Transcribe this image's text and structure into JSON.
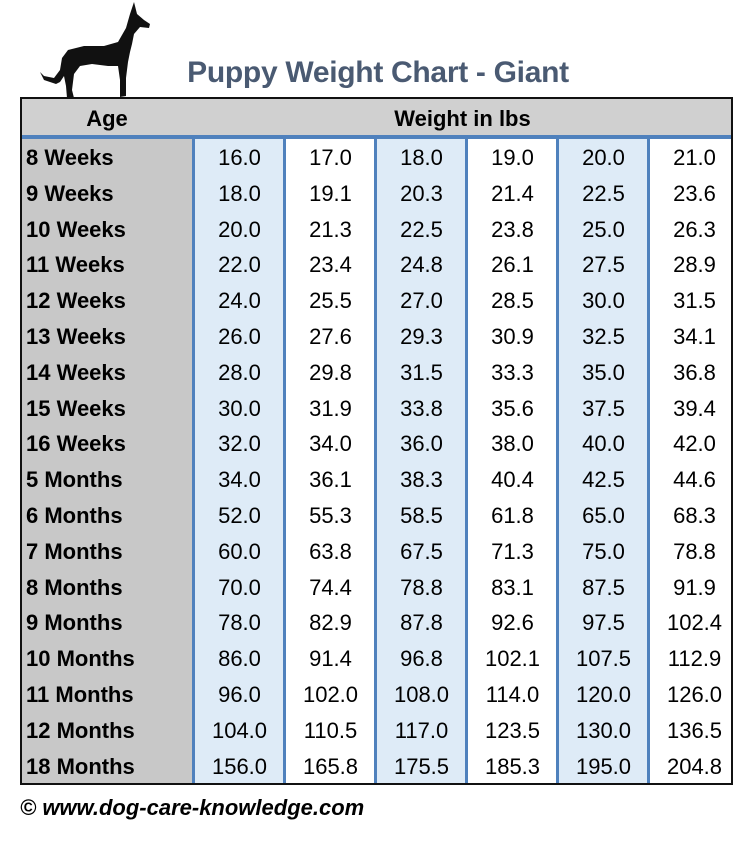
{
  "header": {
    "title": "Puppy Weight Chart - Giant",
    "icon": "dog-silhouette-icon"
  },
  "footer": {
    "copyright": "© www.dog-care-knowledge.com"
  },
  "colors": {
    "title": "#4a5a72",
    "border": "#4f81bd",
    "column_fill": "#deebf7",
    "age_fill": "#c8c8c8"
  },
  "chart_data": {
    "type": "table",
    "title": "Puppy Weight Chart - Giant",
    "columns": [
      "Age",
      "Weight in lbs"
    ],
    "rows": [
      {
        "age": "8 Weeks",
        "values": [
          "16.0",
          "17.0",
          "18.0",
          "19.0",
          "20.0",
          "21.0"
        ]
      },
      {
        "age": "9 Weeks",
        "values": [
          "18.0",
          "19.1",
          "20.3",
          "21.4",
          "22.5",
          "23.6"
        ]
      },
      {
        "age": "10 Weeks",
        "values": [
          "20.0",
          "21.3",
          "22.5",
          "23.8",
          "25.0",
          "26.3"
        ]
      },
      {
        "age": "11 Weeks",
        "values": [
          "22.0",
          "23.4",
          "24.8",
          "26.1",
          "27.5",
          "28.9"
        ]
      },
      {
        "age": "12 Weeks",
        "values": [
          "24.0",
          "25.5",
          "27.0",
          "28.5",
          "30.0",
          "31.5"
        ]
      },
      {
        "age": "13 Weeks",
        "values": [
          "26.0",
          "27.6",
          "29.3",
          "30.9",
          "32.5",
          "34.1"
        ]
      },
      {
        "age": "14 Weeks",
        "values": [
          "28.0",
          "29.8",
          "31.5",
          "33.3",
          "35.0",
          "36.8"
        ]
      },
      {
        "age": "15 Weeks",
        "values": [
          "30.0",
          "31.9",
          "33.8",
          "35.6",
          "37.5",
          "39.4"
        ]
      },
      {
        "age": "16 Weeks",
        "values": [
          "32.0",
          "34.0",
          "36.0",
          "38.0",
          "40.0",
          "42.0"
        ]
      },
      {
        "age": "5 Months",
        "values": [
          "34.0",
          "36.1",
          "38.3",
          "40.4",
          "42.5",
          "44.6"
        ]
      },
      {
        "age": "6 Months",
        "values": [
          "52.0",
          "55.3",
          "58.5",
          "61.8",
          "65.0",
          "68.3"
        ]
      },
      {
        "age": "7 Months",
        "values": [
          "60.0",
          "63.8",
          "67.5",
          "71.3",
          "75.0",
          "78.8"
        ]
      },
      {
        "age": "8 Months",
        "values": [
          "70.0",
          "74.4",
          "78.8",
          "83.1",
          "87.5",
          "91.9"
        ]
      },
      {
        "age": "9 Months",
        "values": [
          "78.0",
          "82.9",
          "87.8",
          "92.6",
          "97.5",
          "102.4"
        ]
      },
      {
        "age": "10 Months",
        "values": [
          "86.0",
          "91.4",
          "96.8",
          "102.1",
          "107.5",
          "112.9"
        ]
      },
      {
        "age": "11 Months",
        "values": [
          "96.0",
          "102.0",
          "108.0",
          "114.0",
          "120.0",
          "126.0"
        ]
      },
      {
        "age": "12 Months",
        "values": [
          "104.0",
          "110.5",
          "117.0",
          "123.5",
          "130.0",
          "136.5"
        ]
      },
      {
        "age": "18 Months",
        "values": [
          "156.0",
          "165.8",
          "175.5",
          "185.3",
          "195.0",
          "204.8"
        ]
      }
    ]
  }
}
